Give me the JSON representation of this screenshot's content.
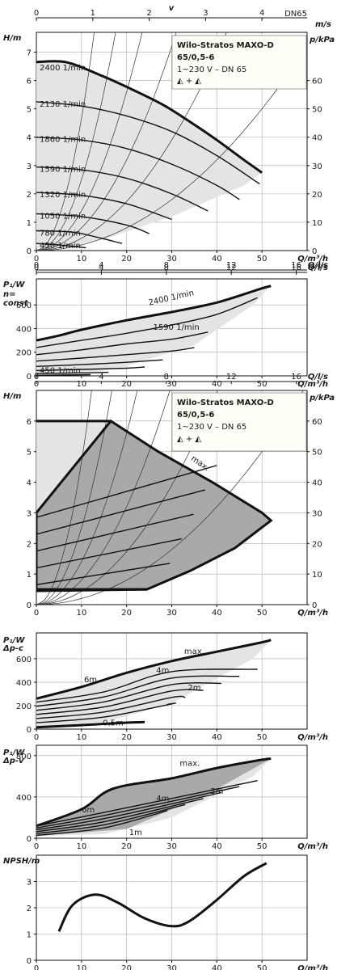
{
  "header": {
    "title": "Wilo-Stratos MAXO-D",
    "model": "65/0,5-6",
    "supply": "1~230 V – DN 65",
    "symbol": "◭ + ◭"
  },
  "colors": {
    "light_fill": "#e4e4e4",
    "dark_fill": "#a9a9a9",
    "line": "#111111"
  },
  "chart_data": [
    {
      "id": "h_n_const",
      "type": "line",
      "xlabel": "Q/m³/h",
      "ylabel": "H/m",
      "y2label": "p/kPa",
      "x2label": "Q/l/s",
      "topscale_label": "v",
      "topscale_unit": "m/s",
      "topscale_name": "DN65",
      "xlim": [
        0,
        60
      ],
      "ylim": [
        0,
        7.7
      ],
      "xticks": [
        0,
        10,
        20,
        30,
        40,
        50
      ],
      "yticks": [
        0,
        1,
        2,
        3,
        4,
        5,
        6,
        7
      ],
      "y2ticks": [
        0,
        10,
        20,
        30,
        40,
        50,
        60
      ],
      "x2ticks": [
        0,
        4,
        8,
        12,
        16
      ],
      "topticks": [
        0,
        1,
        2,
        3,
        4
      ],
      "series": [
        {
          "name": "2400 1/min",
          "x": [
            0,
            6.5,
            14,
            21,
            28,
            34,
            40,
            46,
            50
          ],
          "y": [
            6.65,
            6.65,
            6.2,
            5.7,
            5.15,
            4.55,
            3.9,
            3.2,
            2.75
          ]
        },
        {
          "name": "2130 1/min",
          "x": [
            0,
            10,
            20,
            30,
            40,
            49.5
          ],
          "y": [
            5.25,
            5.1,
            4.75,
            4.2,
            3.35,
            2.35
          ]
        },
        {
          "name": "1860 1/min",
          "x": [
            0,
            10,
            20,
            30,
            40,
            45
          ],
          "y": [
            4.0,
            3.9,
            3.6,
            3.05,
            2.3,
            1.8
          ]
        },
        {
          "name": "1590 1/min",
          "x": [
            0,
            10,
            20,
            30,
            38
          ],
          "y": [
            2.95,
            2.85,
            2.55,
            2.0,
            1.4
          ]
        },
        {
          "name": "1320 1/min",
          "x": [
            0,
            10,
            20,
            30
          ],
          "y": [
            2.05,
            1.95,
            1.65,
            1.1
          ]
        },
        {
          "name": "1050 1/min",
          "x": [
            0,
            10,
            20,
            25
          ],
          "y": [
            1.3,
            1.2,
            0.9,
            0.6
          ]
        },
        {
          "name": "780 1/min",
          "x": [
            0,
            8,
            14,
            19
          ],
          "y": [
            0.7,
            0.65,
            0.45,
            0.25
          ]
        },
        {
          "name": "450 1/min",
          "x": [
            0,
            5,
            11
          ],
          "y": [
            0.25,
            0.2,
            0.1
          ]
        }
      ]
    },
    {
      "id": "p1_n_const",
      "type": "line",
      "xlabel": "Q/m³/h",
      "ylabel": "P₁/W",
      "ylabel2": "n=",
      "ylabel3": "const",
      "x2label": "Q/l/s",
      "xlim": [
        0,
        60
      ],
      "ylim": [
        0,
        820
      ],
      "xticks": [
        0,
        10,
        20,
        30,
        40,
        50
      ],
      "yticks": [
        0,
        200,
        400,
        600
      ],
      "x2ticks": [
        0,
        4,
        8,
        12,
        16
      ],
      "series": [
        {
          "name": "2400 1/min",
          "x": [
            0,
            5,
            10,
            20,
            30,
            40,
            50,
            52
          ],
          "y": [
            300,
            340,
            390,
            470,
            540,
            620,
            740,
            760
          ]
        },
        {
          "name": "",
          "x": [
            0,
            10,
            20,
            30,
            40,
            49
          ],
          "y": [
            240,
            300,
            360,
            430,
            520,
            660
          ]
        },
        {
          "name": "1590 1/min",
          "x": [
            0,
            10,
            20,
            30,
            38
          ],
          "y": [
            180,
            220,
            270,
            310,
            370
          ]
        },
        {
          "name": "",
          "x": [
            0,
            10,
            20,
            30,
            35
          ],
          "y": [
            125,
            150,
            180,
            210,
            240
          ]
        },
        {
          "name": "",
          "x": [
            0,
            10,
            20,
            28
          ],
          "y": [
            80,
            95,
            115,
            135
          ]
        },
        {
          "name": "",
          "x": [
            0,
            10,
            20,
            24
          ],
          "y": [
            45,
            55,
            65,
            75
          ]
        },
        {
          "name": "",
          "x": [
            0,
            10,
            16
          ],
          "y": [
            20,
            25,
            30
          ]
        },
        {
          "name": "450 1/min",
          "x": [
            0,
            7,
            12
          ],
          "y": [
            5,
            8,
            10
          ]
        }
      ]
    },
    {
      "id": "h_dp_ranges",
      "type": "line",
      "xlabel": "Q/m³/h",
      "ylabel": "H/m",
      "y2label": "p/kPa",
      "x2label": "Q/l/s",
      "series_label": "max.",
      "xlim": [
        0,
        60
      ],
      "ylim": [
        0,
        7
      ],
      "xticks": [
        0,
        10,
        20,
        30,
        40,
        50
      ],
      "yticks": [
        0,
        1,
        2,
        3,
        4,
        5,
        6
      ],
      "y2ticks": [
        0,
        10,
        20,
        30,
        40,
        50,
        60
      ],
      "x2ticks": [
        0,
        4,
        8,
        12,
        16
      ],
      "series": [
        {
          "name": "max.",
          "x": [
            0,
            16.5,
            27,
            39,
            50,
            52,
            44,
            34,
            24.5,
            0
          ],
          "y": [
            3,
            6,
            5,
            4,
            3,
            2.75,
            1.85,
            1.1,
            0.5,
            0.5
          ]
        }
      ]
    },
    {
      "id": "p1_dp_c",
      "type": "line",
      "xlabel": "Q/m³/h",
      "ylabel": "P₁/W",
      "ylabel2": "Δp-c",
      "xlim": [
        0,
        60
      ],
      "ylim": [
        0,
        820
      ],
      "xticks": [
        0,
        10,
        20,
        30,
        40,
        50
      ],
      "yticks": [
        0,
        200,
        400,
        600
      ],
      "labels": [
        "max.",
        "6m",
        "4m",
        "2m",
        "0,5m"
      ],
      "series": [
        {
          "name": "max.",
          "x": [
            0,
            10,
            20,
            30,
            40,
            50,
            52
          ],
          "y": [
            260,
            360,
            480,
            580,
            660,
            740,
            760
          ]
        }
      ]
    },
    {
      "id": "p1_dp_v",
      "type": "line",
      "xlabel": "Q/m³/h",
      "ylabel": "P₁/W",
      "ylabel2": "Δp-v",
      "xlim": [
        0,
        60
      ],
      "ylim": [
        0,
        900
      ],
      "xticks": [
        0,
        10,
        20,
        30,
        40,
        50
      ],
      "yticks": [
        0,
        400,
        800
      ],
      "labels": [
        "max.",
        "6m",
        "4m",
        "3m",
        "1m"
      ],
      "series": [
        {
          "name": "max.",
          "x": [
            0,
            10,
            17,
            30,
            40,
            50,
            52
          ],
          "y": [
            120,
            280,
            480,
            580,
            680,
            760,
            770
          ]
        }
      ]
    },
    {
      "id": "npsh",
      "type": "line",
      "xlabel": "Q/m³/h",
      "ylabel": "NPSH/m",
      "xlim": [
        0,
        60
      ],
      "ylim": [
        0,
        4
      ],
      "xticks": [
        0,
        10,
        20,
        30,
        40,
        50
      ],
      "yticks": [
        0,
        1,
        2,
        3
      ],
      "series": [
        {
          "name": "",
          "x": [
            5,
            8,
            13,
            18,
            24,
            30,
            34,
            40,
            46,
            51
          ],
          "y": [
            1.1,
            2.1,
            2.5,
            2.2,
            1.6,
            1.3,
            1.5,
            2.3,
            3.2,
            3.7
          ]
        }
      ]
    }
  ]
}
